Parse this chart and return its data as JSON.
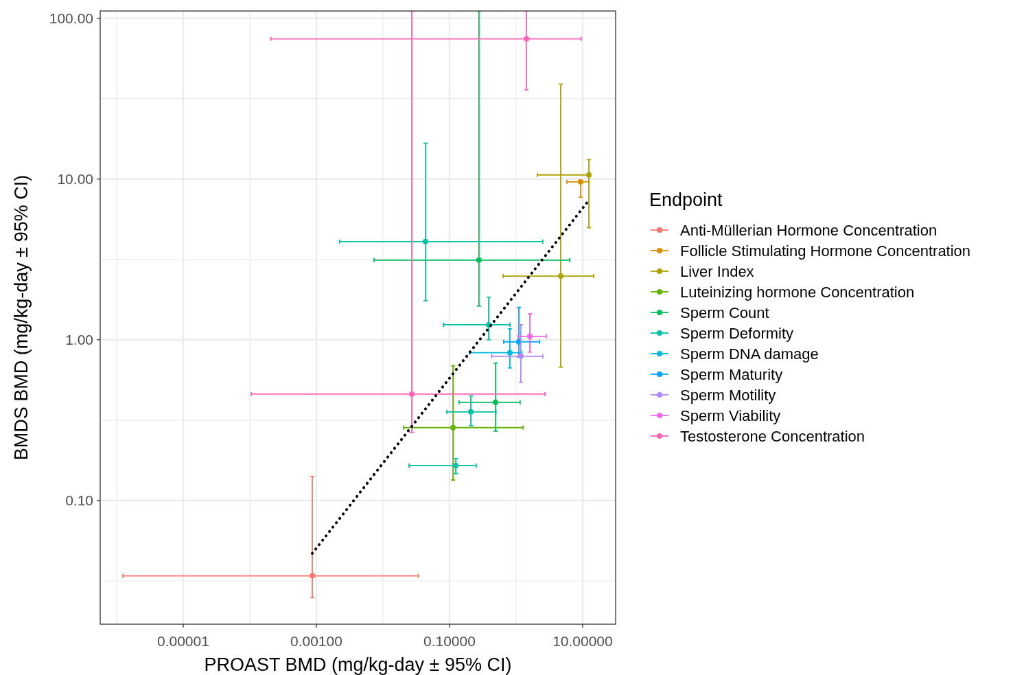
{
  "chart_data": {
    "type": "scatter",
    "xlabel": "PROAST BMD (mg/kg-day ± 95% CI)",
    "ylabel": "BMDS BMD (mg/kg-day ± 95% CI)",
    "legend_title": "Endpoint",
    "legend": "right",
    "grid": true,
    "marker": "circle",
    "log": "xy",
    "xlim": [
      5.66e-07,
      31.3
    ],
    "ylim": [
      0.017,
      111
    ],
    "xticks": [
      {
        "value": 1e-06,
        "label": null
      },
      {
        "value": 1e-05,
        "label": "0.00001"
      },
      {
        "value": 0.0001,
        "label": null
      },
      {
        "value": 0.001,
        "label": "0.00100"
      },
      {
        "value": 0.01,
        "label": null
      },
      {
        "value": 0.1,
        "label": "0.10000"
      },
      {
        "value": 1,
        "label": null
      },
      {
        "value": 10,
        "label": "10.00000"
      }
    ],
    "yticks": [
      {
        "value": 0.0316,
        "label": null
      },
      {
        "value": 0.1,
        "label": "0.10"
      },
      {
        "value": 0.316,
        "label": null
      },
      {
        "value": 1,
        "label": "1.00"
      },
      {
        "value": 3.16,
        "label": null
      },
      {
        "value": 10,
        "label": "10.00"
      },
      {
        "value": 31.6,
        "label": null
      },
      {
        "value": 100,
        "label": "100.00"
      }
    ],
    "series": [
      {
        "name": "Anti-Müllerian Hormone Concentration",
        "color": "#f8766d",
        "x": [
          0.00087
        ],
        "values": [
          0.034
        ],
        "xerrors": [
          [
            1.24e-06,
            0.034
          ]
        ],
        "errors": [
          [
            0.0249,
            0.141
          ]
        ]
      },
      {
        "name": "Follicle Stimulating Hormone Concentration",
        "color": "#db8e00",
        "x": [
          9.3
        ],
        "values": [
          9.6
        ],
        "xerrors": [
          [
            5.8,
            12.4
          ]
        ],
        "errors": [
          [
            7.7,
            9.7
          ]
        ]
      },
      {
        "name": "Liver Index",
        "color": "#aea200",
        "x": [
          12.4,
          4.68
        ],
        "values": [
          10.6,
          2.49
        ],
        "xerrors": [
          [
            2.09,
            12.4
          ],
          [
            0.64,
            14.6
          ]
        ],
        "errors": [
          [
            4.98,
            13.2
          ],
          [
            0.675,
            38.9
          ]
        ]
      },
      {
        "name": "Luteinizing hormone Concentration",
        "color": "#64b200",
        "x": [
          0.113
        ],
        "values": [
          0.284
        ],
        "xerrors": [
          [
            0.0204,
            1.27
          ]
        ],
        "errors": [
          [
            0.134,
            0.689
          ]
        ]
      },
      {
        "name": "Sperm Count",
        "color": "#00bd5c",
        "x": [
          0.277,
          0.491
        ],
        "values": [
          3.13,
          0.408
        ],
        "xerrors": [
          [
            0.00735,
            6.37
          ],
          [
            0.139,
            1.15
          ]
        ],
        "errors": [
          [
            1.62,
            111
          ],
          [
            0.27,
            0.716
          ]
        ]
      },
      {
        "name": "Sperm Deformity",
        "color": "#00c1a7",
        "x": [
          0.0435,
          0.387,
          0.209,
          0.124
        ],
        "values": [
          4.08,
          1.24,
          0.356,
          0.165
        ],
        "xerrors": [
          [
            0.00224,
            2.52
          ],
          [
            0.081,
            0.81
          ],
          [
            0.091,
            0.5
          ],
          [
            0.0247,
            0.252
          ]
        ],
        "errors": [
          [
            1.75,
            16.7
          ],
          [
            1.0,
            1.84
          ],
          [
            0.292,
            0.447
          ],
          [
            0.147,
            0.182
          ]
        ]
      },
      {
        "name": "Sperm DNA damage",
        "color": "#00bade",
        "x": [
          0.807
        ],
        "values": [
          0.83
        ],
        "xerrors": [
          [
            0.199,
            1.21
          ]
        ],
        "errors": [
          [
            0.668,
            1.17
          ]
        ]
      },
      {
        "name": "Sperm Maturity",
        "color": "#00a6ff",
        "x": [
          1.1
        ],
        "values": [
          0.97
        ],
        "xerrors": [
          [
            0.652,
            2.24
          ]
        ],
        "errors": [
          [
            0.78,
            1.59
          ]
        ]
      },
      {
        "name": "Sperm Motility",
        "color": "#b385ff",
        "x": [
          1.18
        ],
        "values": [
          0.789
        ],
        "xerrors": [
          [
            0.426,
            2.52
          ]
        ],
        "errors": [
          [
            0.543,
            1.24
          ]
        ]
      },
      {
        "name": "Sperm Viability",
        "color": "#ef67eb",
        "x": [
          1.61
        ],
        "values": [
          1.05
        ],
        "xerrors": [
          [
            1.07,
            2.84
          ]
        ],
        "errors": [
          [
            0.838,
            1.45
          ]
        ]
      },
      {
        "name": "Testosterone Concentration",
        "color": "#ff63b6",
        "x": [
          1.43,
          0.0271
        ],
        "values": [
          74.5,
          0.459
        ],
        "xerrors": [
          [
            0.000206,
            9.53
          ],
          [
            0.000105,
            2.71
          ]
        ],
        "errors": [
          [
            35.9,
            111
          ],
          [
            0.265,
            111
          ]
        ]
      },
      {
        "type": "line",
        "color": "#000000",
        "line_style": "dotted",
        "marker": "none",
        "x": [
          0.00087,
          12.4
        ],
        "values": [
          0.0469,
          7.38
        ]
      }
    ]
  }
}
